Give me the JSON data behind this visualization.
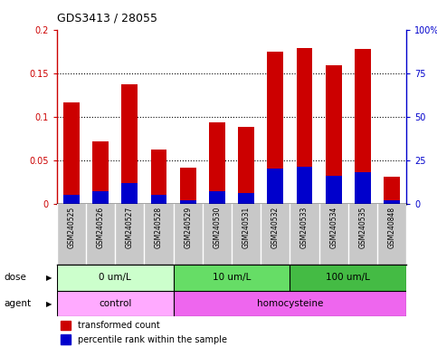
{
  "title": "GDS3413 / 28055",
  "samples": [
    "GSM240525",
    "GSM240526",
    "GSM240527",
    "GSM240528",
    "GSM240529",
    "GSM240530",
    "GSM240531",
    "GSM240532",
    "GSM240533",
    "GSM240534",
    "GSM240535",
    "GSM240848"
  ],
  "transformed_count": [
    0.116,
    0.071,
    0.137,
    0.062,
    0.041,
    0.093,
    0.088,
    0.175,
    0.179,
    0.159,
    0.178,
    0.031
  ],
  "percentile_rank_pct": [
    5,
    7,
    12,
    5,
    2,
    7,
    6,
    20,
    21,
    16,
    18,
    2
  ],
  "ylim_left": [
    0,
    0.2
  ],
  "ylim_right": [
    0,
    100
  ],
  "yticks_left": [
    0,
    0.05,
    0.1,
    0.15,
    0.2
  ],
  "yticks_right": [
    0,
    25,
    50,
    75,
    100
  ],
  "ytick_labels_left": [
    "0",
    "0.05",
    "0.1",
    "0.15",
    "0.2"
  ],
  "ytick_labels_right": [
    "0",
    "25",
    "50",
    "75",
    "100%"
  ],
  "dose_groups": [
    {
      "label": "0 um/L",
      "start": 0,
      "end": 4,
      "color": "#ccffcc"
    },
    {
      "label": "10 um/L",
      "start": 4,
      "end": 8,
      "color": "#66dd66"
    },
    {
      "label": "100 um/L",
      "start": 8,
      "end": 12,
      "color": "#44bb44"
    }
  ],
  "agent_groups": [
    {
      "label": "control",
      "start": 0,
      "end": 4,
      "color": "#ffaaff"
    },
    {
      "label": "homocysteine",
      "start": 4,
      "end": 12,
      "color": "#ee66ee"
    }
  ],
  "bar_color_red": "#cc0000",
  "bar_color_blue": "#0000cc",
  "bar_width": 0.55,
  "dose_label": "dose",
  "agent_label": "agent",
  "legend_red": "transformed count",
  "legend_blue": "percentile rank within the sample"
}
